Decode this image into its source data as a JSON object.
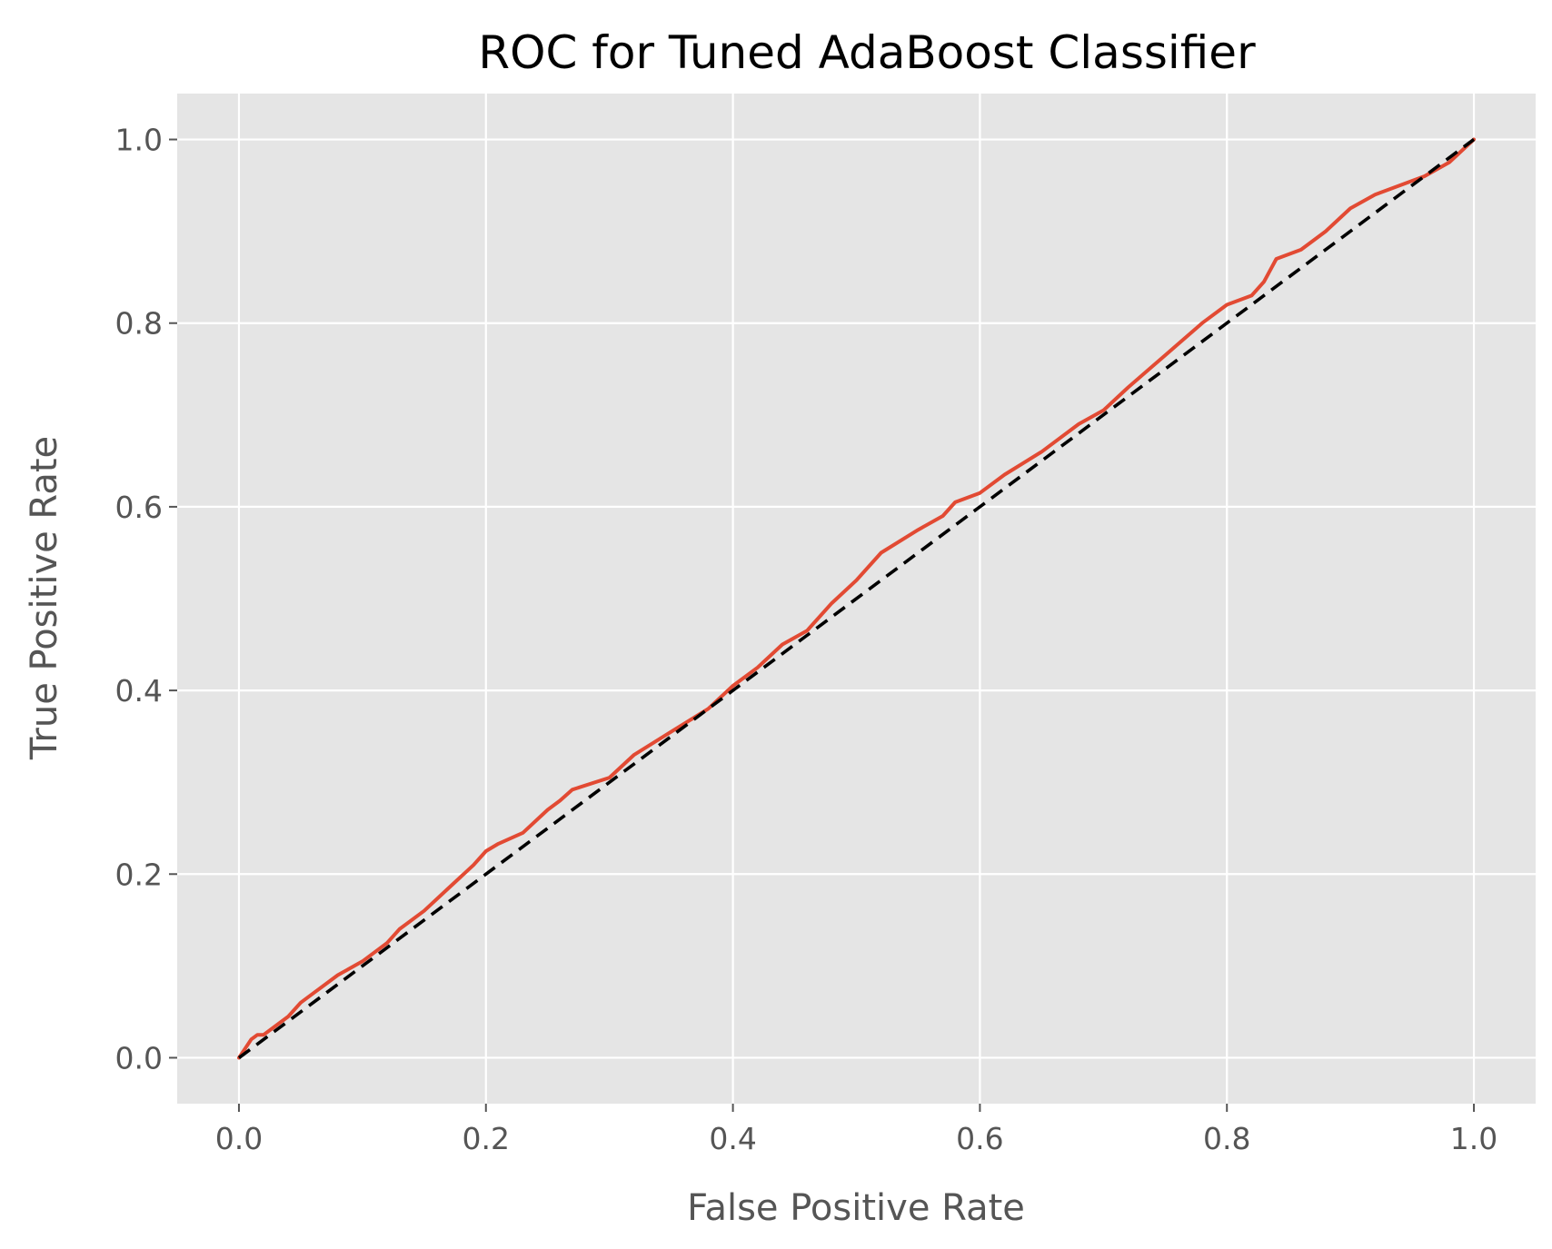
{
  "chart_data": {
    "type": "line",
    "title": "ROC for Tuned AdaBoost Classifier",
    "xlabel": "False Positive Rate",
    "ylabel": "True Positive Rate",
    "xlim": [
      -0.05,
      1.05
    ],
    "ylim": [
      -0.05,
      1.05
    ],
    "xticks": [
      "0.0",
      "0.2",
      "0.4",
      "0.6",
      "0.8",
      "1.0"
    ],
    "yticks": [
      "0.0",
      "0.2",
      "0.4",
      "0.6",
      "0.8",
      "1.0"
    ],
    "grid": true,
    "legend": false,
    "series": [
      {
        "color": "#e24a33",
        "style": "solid",
        "x": [
          0.0,
          0.005,
          0.01,
          0.015,
          0.02,
          0.03,
          0.04,
          0.05,
          0.06,
          0.07,
          0.08,
          0.1,
          0.12,
          0.13,
          0.15,
          0.17,
          0.19,
          0.2,
          0.21,
          0.23,
          0.25,
          0.26,
          0.27,
          0.3,
          0.32,
          0.35,
          0.38,
          0.4,
          0.42,
          0.44,
          0.46,
          0.48,
          0.5,
          0.52,
          0.55,
          0.57,
          0.58,
          0.6,
          0.62,
          0.65,
          0.68,
          0.7,
          0.72,
          0.75,
          0.78,
          0.8,
          0.82,
          0.83,
          0.84,
          0.86,
          0.88,
          0.9,
          0.92,
          0.94,
          0.96,
          0.98,
          1.0
        ],
        "y": [
          0.0,
          0.01,
          0.02,
          0.025,
          0.025,
          0.035,
          0.045,
          0.06,
          0.07,
          0.08,
          0.09,
          0.105,
          0.125,
          0.14,
          0.16,
          0.185,
          0.21,
          0.225,
          0.233,
          0.245,
          0.27,
          0.28,
          0.292,
          0.305,
          0.33,
          0.355,
          0.38,
          0.405,
          0.425,
          0.45,
          0.465,
          0.495,
          0.52,
          0.55,
          0.575,
          0.59,
          0.605,
          0.615,
          0.635,
          0.66,
          0.69,
          0.705,
          0.73,
          0.765,
          0.8,
          0.82,
          0.83,
          0.845,
          0.87,
          0.88,
          0.9,
          0.925,
          0.94,
          0.95,
          0.96,
          0.975,
          1.0
        ]
      },
      {
        "color": "#000000",
        "style": "dashed",
        "x": [
          0.0,
          1.0
        ],
        "y": [
          0.0,
          1.0
        ]
      }
    ]
  }
}
